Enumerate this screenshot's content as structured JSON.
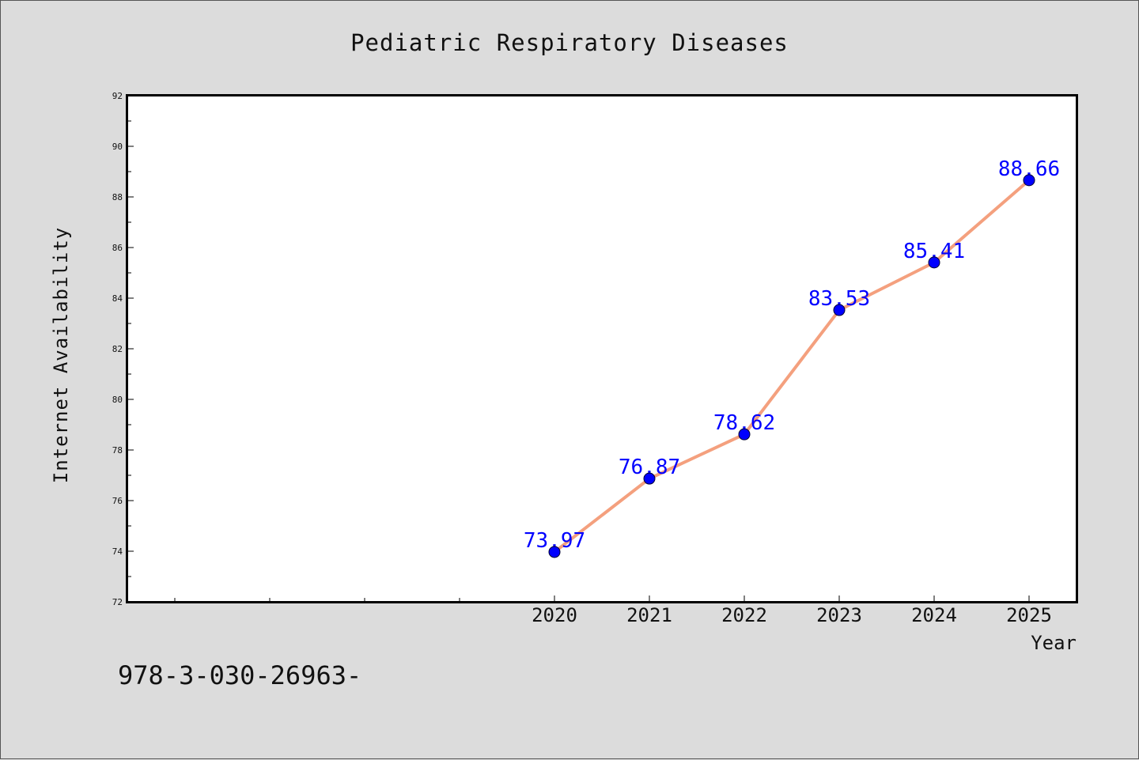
{
  "chart_data": {
    "type": "line",
    "title": "Pediatric Respiratory Diseases",
    "xlabel": "Year",
    "ylabel": "Internet Availability",
    "categories": [
      "2020",
      "2021",
      "2022",
      "2023",
      "2024",
      "2025"
    ],
    "series": [
      {
        "values": [
          73.97,
          76.87,
          78.62,
          83.53,
          85.41,
          88.66
        ],
        "line_color": "#f4a07e",
        "marker_color": "#0000ff"
      }
    ],
    "data_labels": [
      "73.97",
      "76.87",
      "78.62",
      "83.53",
      "85.41",
      "88.66"
    ],
    "ylim": [
      72,
      92
    ],
    "yticks": [
      72,
      74,
      76,
      78,
      80,
      82,
      84,
      86,
      88,
      90,
      92
    ],
    "x_axis_start_year": 2016,
    "grid": false,
    "legend": "none"
  },
  "footer_text": "978-3-030-26963-",
  "colors": {
    "background": "#dcdcdc",
    "plot_background": "#ffffff",
    "line": "#f4a07e",
    "marker": "#0000ff",
    "data_label": "#0000ff"
  }
}
